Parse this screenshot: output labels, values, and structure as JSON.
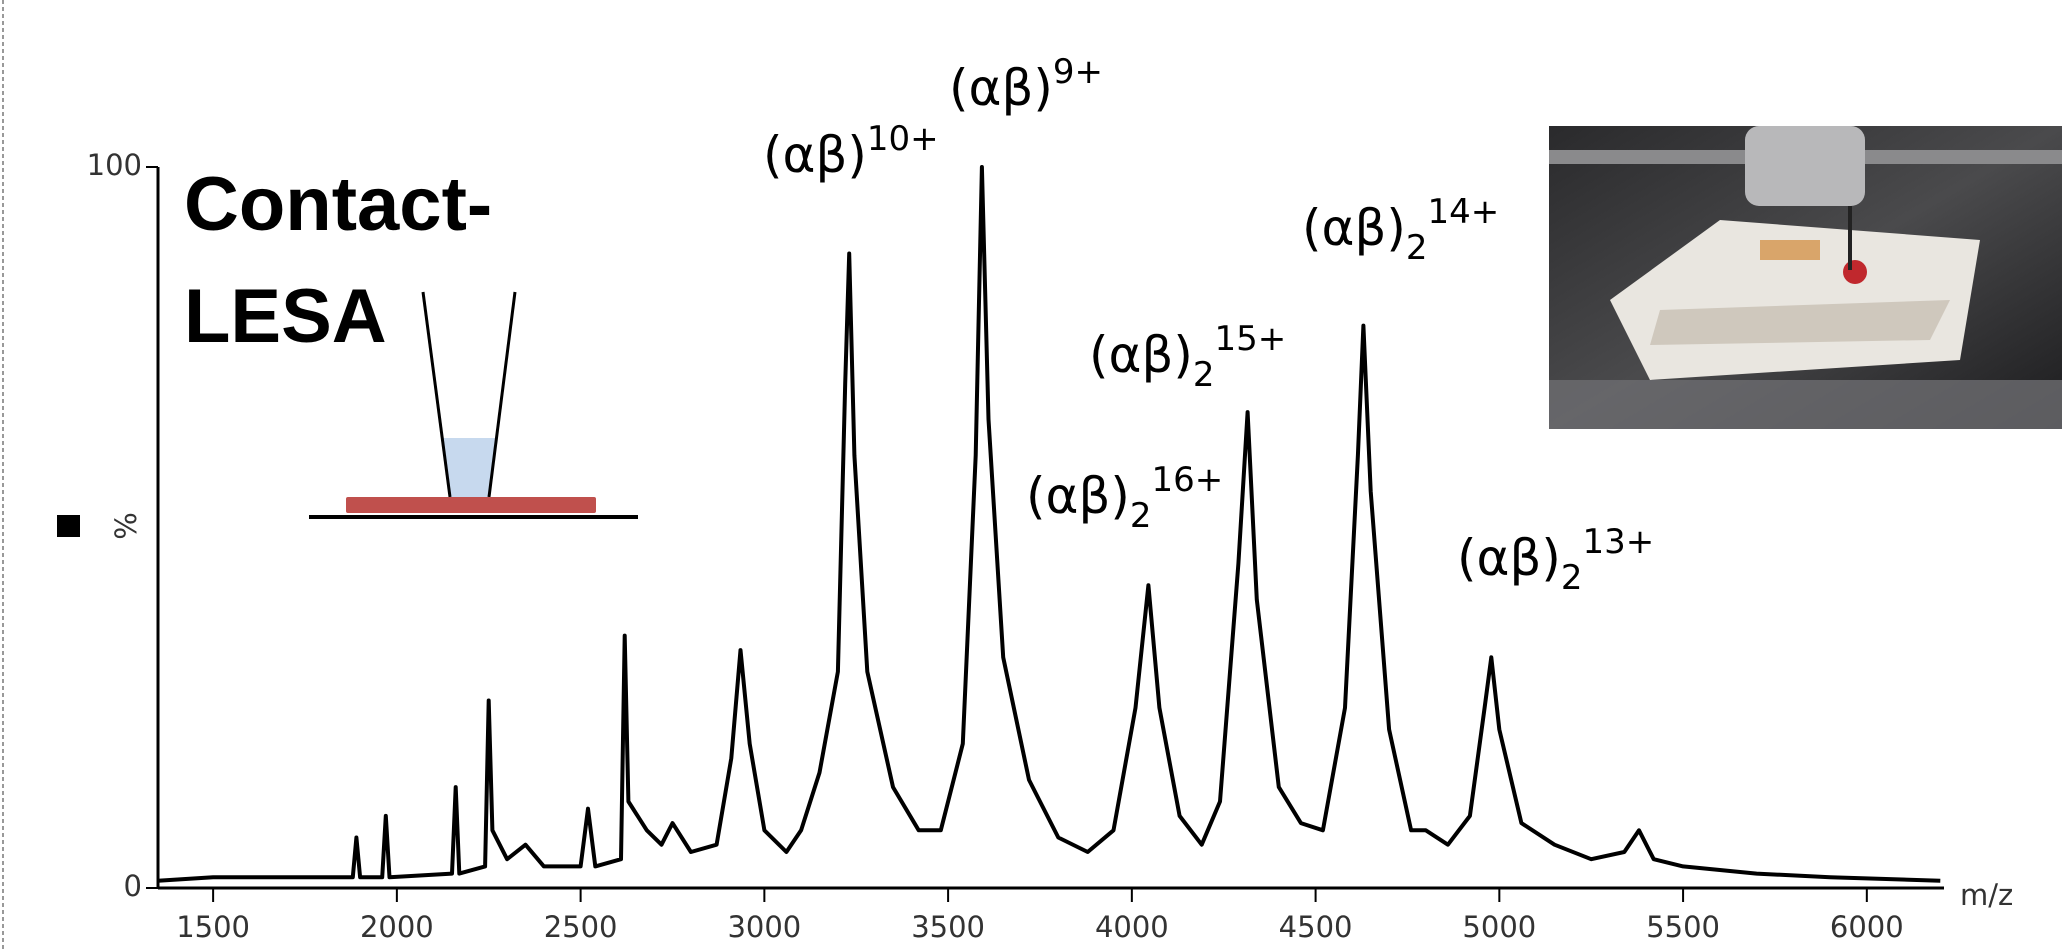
{
  "chart_data": {
    "type": "line",
    "title_lines": [
      "Contact-",
      "LESA"
    ],
    "x_label": "m/z",
    "y_label": "%",
    "x": [
      1350,
      1500,
      1700,
      1880,
      1890,
      1900,
      1960,
      1970,
      1980,
      2150,
      2160,
      2170,
      2240,
      2250,
      2260,
      2300,
      2350,
      2400,
      2500,
      2520,
      2540,
      2610,
      2620,
      2630,
      2680,
      2720,
      2750,
      2800,
      2870,
      2910,
      2935,
      2960,
      3000,
      3060,
      3100,
      3150,
      3200,
      3220,
      3231,
      3245,
      3280,
      3350,
      3420,
      3480,
      3540,
      3575,
      3592,
      3610,
      3650,
      3720,
      3800,
      3880,
      3950,
      4010,
      4045,
      4075,
      4130,
      4190,
      4240,
      4290,
      4315,
      4340,
      4400,
      4460,
      4520,
      4580,
      4615,
      4630,
      4650,
      4700,
      4760,
      4800,
      4860,
      4920,
      4960,
      4978,
      5000,
      5060,
      5150,
      5250,
      5340,
      5380,
      5420,
      5500,
      5700,
      5900,
      6200
    ],
    "series": [
      {
        "color": "#000000",
        "values": [
          1,
          1.5,
          1.5,
          1.5,
          7,
          1.5,
          1.5,
          10,
          1.5,
          2,
          14,
          2,
          3,
          26,
          8,
          4,
          6,
          3,
          3,
          11,
          3,
          4,
          35,
          12,
          8,
          6,
          9,
          5,
          6,
          18,
          33,
          20,
          8,
          5,
          8,
          16,
          30,
          70,
          88,
          60,
          30,
          14,
          8,
          8,
          20,
          60,
          100,
          65,
          32,
          15,
          7,
          5,
          8,
          25,
          42,
          25,
          10,
          6,
          12,
          45,
          66,
          40,
          14,
          9,
          8,
          25,
          60,
          78,
          55,
          22,
          8,
          8,
          6,
          10,
          25,
          32,
          22,
          9,
          6,
          4,
          5,
          8,
          4,
          3,
          2,
          1.5,
          1
        ]
      }
    ],
    "xlim": [
      1350,
      6210
    ],
    "ylim": [
      0,
      100
    ],
    "xticks": [
      1500,
      2000,
      2500,
      3000,
      3500,
      4000,
      4500,
      5000,
      5500,
      6000
    ],
    "yticks": [
      0,
      100
    ],
    "annotations": [
      {
        "text": "(αβ)",
        "sup": "10+"
      },
      {
        "text": "(αβ)",
        "sup": "9+"
      },
      {
        "text": "(αβ)",
        "sub": "2",
        "sup": "14+"
      },
      {
        "text": "(αβ)",
        "sub": "2",
        "sup": "15+"
      },
      {
        "text": "(αβ)",
        "sub": "2",
        "sup": "16+"
      },
      {
        "text": "(αβ)",
        "sub": "2",
        "sup": "13+"
      }
    ]
  }
}
